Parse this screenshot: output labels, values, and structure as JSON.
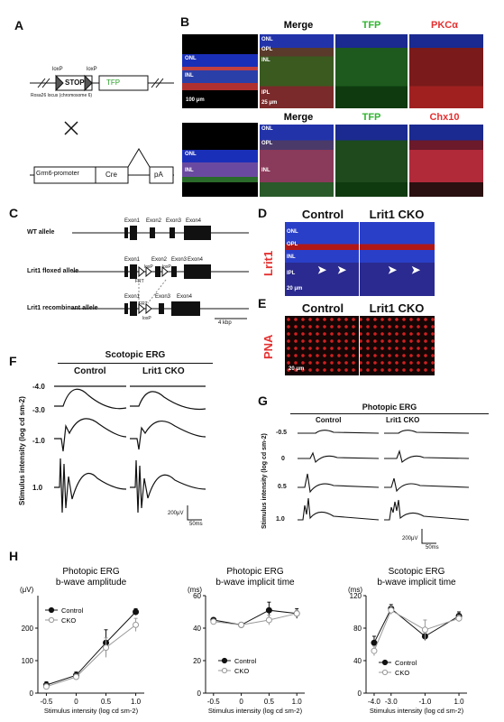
{
  "panels": {
    "A": "A",
    "B": "B",
    "C": "C",
    "D": "D",
    "E": "E",
    "F": "F",
    "G": "G",
    "H": "H"
  },
  "panelA": {
    "loxp1": "loxP",
    "loxp2": "loxP",
    "stop": "STOP",
    "tfp": "TFP",
    "locus": "Rosa26 locus (chromosome 6)",
    "grm6": "Grm6-promoter",
    "cre": "Cre",
    "pa": "pA"
  },
  "panelB": {
    "row1_side": "TFP PKCα",
    "row2_side": "TFP Chx10",
    "row1_headers": [
      "Merge",
      "TFP",
      "PKCα"
    ],
    "row2_headers": [
      "Merge",
      "TFP",
      "Chx10"
    ],
    "row1_layers": [
      "ONL",
      "OPL",
      "INL",
      "IPL"
    ],
    "row2_layers": [
      "ONL",
      "OPL",
      "INL"
    ],
    "scale1": "100 μm",
    "scale2": "25 μm",
    "side_layers1": [
      "ONL",
      "INL"
    ],
    "side_layers2": [
      "ONL",
      "INL"
    ]
  },
  "panelC": {
    "wt": "WT allele",
    "floxed": "Lrit1 floxed allele",
    "recomb": "Lrit1 recombinant allele",
    "exons_wt": [
      "Exon1",
      "Exon2",
      "Exon3",
      "Exon4"
    ],
    "exons_flox": [
      "Exon1",
      "Exon2",
      "Exon3",
      "Exon4"
    ],
    "exons_rec": [
      "Exon1",
      "Exon3",
      "Exon4"
    ],
    "loxp": "loxP",
    "frt": "FRT",
    "scale": "4 kbp"
  },
  "panelD": {
    "control": "Control",
    "cko": "Lrit1 CKO",
    "side": "Lrit1",
    "layers": [
      "ONL",
      "OPL",
      "INL",
      "IPL"
    ],
    "scale": "20 μm"
  },
  "panelE": {
    "control": "Control",
    "cko": "Lrit1 CKO",
    "side": "PNA",
    "scale": "20 μm"
  },
  "panelF": {
    "title": "Scotopic ERG",
    "control": "Control",
    "cko": "Lrit1 CKO",
    "ylabel": "Stimulus intensity (log cd sm-2)",
    "intensities": [
      "-4.0",
      "-3.0",
      "-1.0",
      "1.0"
    ],
    "scale_v": "200μV",
    "scale_t": "50ms"
  },
  "panelG": {
    "title": "Photopic ERG",
    "control": "Control",
    "cko": "Lrit1 CKO",
    "ylabel": "Stimulus intensity (log cd sm-2)",
    "intensities": [
      "-0.5",
      "0",
      "0.5",
      "1.0"
    ],
    "scale_v": "200μV",
    "scale_t": "50ms"
  },
  "chart_data": [
    {
      "type": "line",
      "title": "Photopic ERG b-wave amplitude",
      "xlabel": "Stimulus intensity (log cd sm-2)",
      "ylabel": "(μV)",
      "x": [
        -0.5,
        0,
        0.5,
        1.0
      ],
      "xticks": [
        "-0.5",
        "0",
        "0.5",
        "1.0"
      ],
      "ylim": [
        0,
        300
      ],
      "yticks": [
        "0",
        "100",
        "200"
      ],
      "series": [
        {
          "name": "Control",
          "values": [
            25,
            55,
            155,
            250
          ],
          "err": [
            10,
            10,
            40,
            10
          ]
        },
        {
          "name": "CKO",
          "values": [
            20,
            50,
            140,
            210
          ],
          "err": [
            8,
            8,
            30,
            20
          ]
        }
      ]
    },
    {
      "type": "line",
      "title": "Photopic ERG b-wave implicit time",
      "xlabel": "Stimulus intensity (log cd sm-2)",
      "ylabel": "(ms)",
      "x": [
        -0.5,
        0,
        0.5,
        1.0
      ],
      "xticks": [
        "-0.5",
        "0",
        "0.5",
        "1.0"
      ],
      "ylim": [
        0,
        60
      ],
      "yticks": [
        "0",
        "20",
        "40",
        "60"
      ],
      "series": [
        {
          "name": "Control",
          "values": [
            45,
            42,
            51,
            49
          ],
          "err": [
            1,
            1,
            5,
            3
          ]
        },
        {
          "name": "CKO",
          "values": [
            44,
            42,
            45,
            49
          ],
          "err": [
            1,
            1,
            3,
            2
          ]
        }
      ]
    },
    {
      "type": "line",
      "title": "Scotopic ERG b-wave implicit time",
      "xlabel": "Stimulus intensity (log cd sm-2)",
      "ylabel": "(ms)",
      "x": [
        -4.0,
        -3.0,
        -1.0,
        1.0
      ],
      "xticks": [
        "-4.0",
        "-3.0",
        "-1.0",
        "1.0"
      ],
      "ylim": [
        0,
        120
      ],
      "yticks": [
        "0",
        "40",
        "80",
        "120"
      ],
      "series": [
        {
          "name": "Control",
          "values": [
            62,
            104,
            70,
            95
          ],
          "err": [
            8,
            5,
            5,
            5
          ]
        },
        {
          "name": "CKO",
          "values": [
            52,
            102,
            78,
            92
          ],
          "err": [
            6,
            5,
            12,
            4
          ]
        }
      ]
    }
  ]
}
